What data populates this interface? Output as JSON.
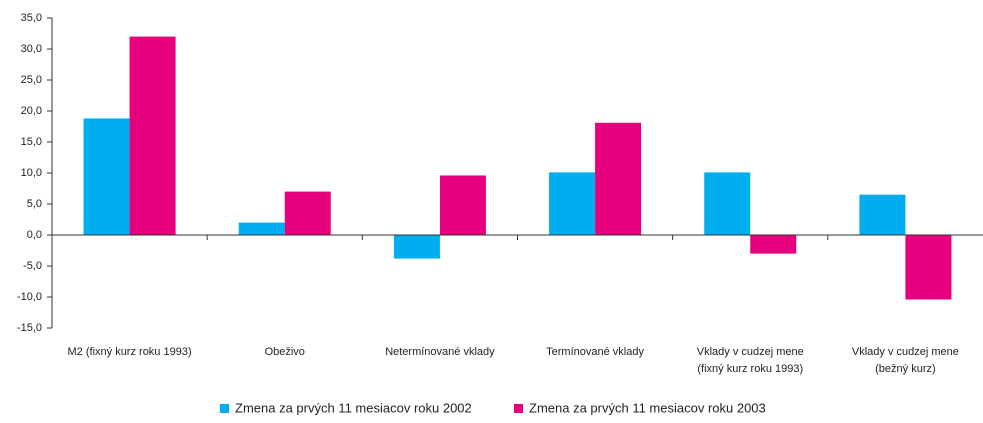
{
  "chart_data": {
    "type": "bar",
    "categories": [
      [
        "M2 (fixný kurz roku 1993)"
      ],
      [
        "Obeživo"
      ],
      [
        "Netermínované vklady"
      ],
      [
        "Termínované vklady"
      ],
      [
        "Vklady v cudzej mene",
        "(fixný kurz roku 1993)"
      ],
      [
        "Vklady v cudzej mene",
        "(bežný kurz)"
      ]
    ],
    "series": [
      {
        "name": "Zmena za prvých 11 mesiacov roku 2002",
        "color": "#00aeef",
        "values": [
          18.8,
          2.0,
          -3.8,
          10.1,
          10.1,
          6.5
        ]
      },
      {
        "name": "Zmena za prvých 11 mesiacov roku 2003",
        "color": "#e6007e",
        "values": [
          32.0,
          7.0,
          9.6,
          18.1,
          -3.0,
          -10.4
        ]
      }
    ],
    "ylim": [
      -15,
      35
    ],
    "yticks": [
      {
        "value": -15,
        "label": "-15,0"
      },
      {
        "value": -10,
        "label": "-10,0"
      },
      {
        "value": -5,
        "label": "-5,0"
      },
      {
        "value": 0,
        "label": "0,0"
      },
      {
        "value": 5,
        "label": "5,0"
      },
      {
        "value": 10,
        "label": "10,0"
      },
      {
        "value": 15,
        "label": "15,0"
      },
      {
        "value": 20,
        "label": "20,0"
      },
      {
        "value": 25,
        "label": "25,0"
      },
      {
        "value": 30,
        "label": "30,0"
      },
      {
        "value": 35,
        "label": "35,0"
      }
    ],
    "legend": "bottom"
  }
}
